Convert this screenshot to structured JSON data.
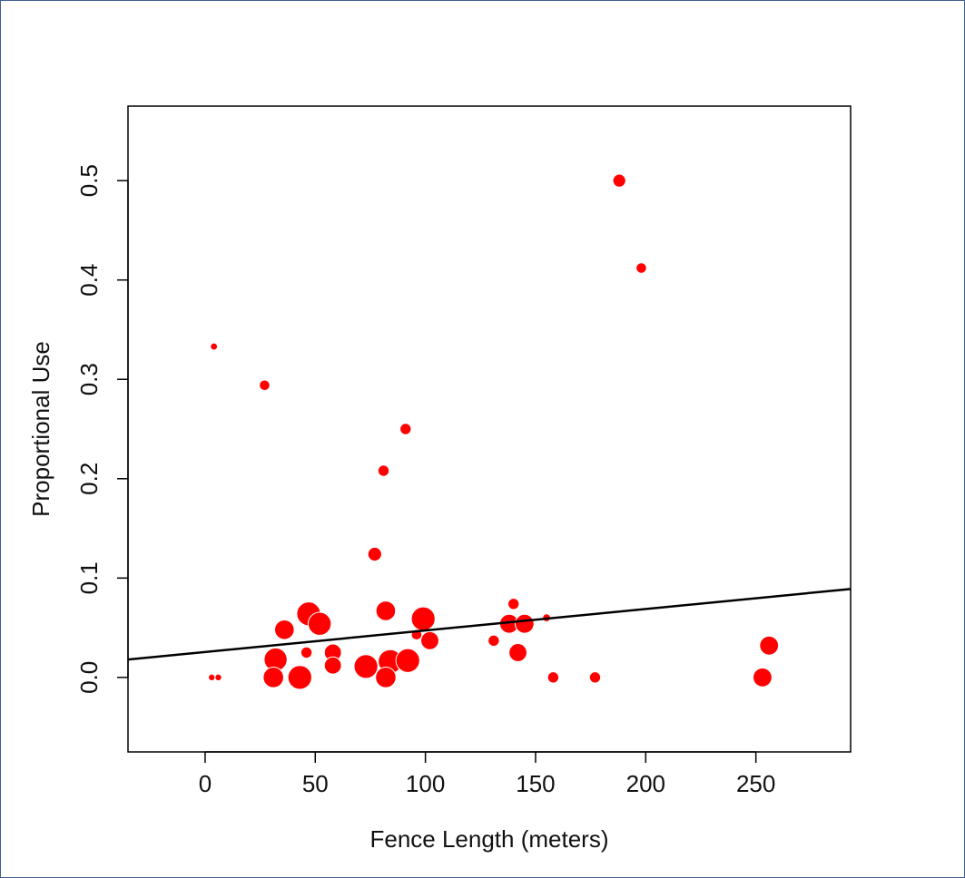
{
  "chart_data": {
    "type": "scatter",
    "title": "",
    "xlabel": "Fence Length (meters)",
    "ylabel": "Proportional Use",
    "xlim": [
      -35,
      293
    ],
    "ylim": [
      -0.075,
      0.575
    ],
    "xticks": [
      0,
      50,
      100,
      150,
      200,
      250
    ],
    "xtick_labels": [
      "0",
      "50",
      "100",
      "150",
      "200",
      "250"
    ],
    "yticks": [
      0.0,
      0.1,
      0.2,
      0.3,
      0.4,
      0.5
    ],
    "ytick_labels": [
      "0.0",
      "0.1",
      "0.2",
      "0.3",
      "0.4",
      "0.5"
    ],
    "grid": false,
    "legend": "none",
    "point_color": "#ff0000",
    "line_color": "#000000",
    "points": [
      {
        "x": 188,
        "y": 0.5,
        "size": 0.9
      },
      {
        "x": 198,
        "y": 0.412,
        "size": 0.6
      },
      {
        "x": 4,
        "y": 0.333,
        "size": 0.2
      },
      {
        "x": 27,
        "y": 0.294,
        "size": 0.6
      },
      {
        "x": 91,
        "y": 0.25,
        "size": 0.7
      },
      {
        "x": 81,
        "y": 0.208,
        "size": 0.7
      },
      {
        "x": 77,
        "y": 0.124,
        "size": 1.0
      },
      {
        "x": 140,
        "y": 0.074,
        "size": 0.7
      },
      {
        "x": 82,
        "y": 0.067,
        "size": 1.7
      },
      {
        "x": 47,
        "y": 0.064,
        "size": 2.2
      },
      {
        "x": 155,
        "y": 0.06,
        "size": 0.3
      },
      {
        "x": 99,
        "y": 0.059,
        "size": 2.2
      },
      {
        "x": 52,
        "y": 0.054,
        "size": 2.1
      },
      {
        "x": 138,
        "y": 0.054,
        "size": 1.6
      },
      {
        "x": 145,
        "y": 0.054,
        "size": 1.6
      },
      {
        "x": 36,
        "y": 0.048,
        "size": 1.7
      },
      {
        "x": 96,
        "y": 0.043,
        "size": 0.6
      },
      {
        "x": 102,
        "y": 0.037,
        "size": 1.5
      },
      {
        "x": 131,
        "y": 0.037,
        "size": 0.7
      },
      {
        "x": 256,
        "y": 0.032,
        "size": 1.6
      },
      {
        "x": 46,
        "y": 0.025,
        "size": 0.7
      },
      {
        "x": 58,
        "y": 0.025,
        "size": 1.4
      },
      {
        "x": 142,
        "y": 0.025,
        "size": 1.5
      },
      {
        "x": 32,
        "y": 0.018,
        "size": 2.1
      },
      {
        "x": 84,
        "y": 0.016,
        "size": 2.2
      },
      {
        "x": 92,
        "y": 0.017,
        "size": 2.2
      },
      {
        "x": 58,
        "y": 0.012,
        "size": 1.4
      },
      {
        "x": 73,
        "y": 0.011,
        "size": 2.2
      },
      {
        "x": 3,
        "y": 0.0,
        "size": 0.15
      },
      {
        "x": 6,
        "y": 0.0,
        "size": 0.15
      },
      {
        "x": 31,
        "y": 0.0,
        "size": 1.8
      },
      {
        "x": 43,
        "y": 0.0,
        "size": 2.2
      },
      {
        "x": 82,
        "y": 0.0,
        "size": 1.8
      },
      {
        "x": 158,
        "y": 0.0,
        "size": 0.7
      },
      {
        "x": 177,
        "y": 0.0,
        "size": 0.7
      },
      {
        "x": 253,
        "y": 0.0,
        "size": 1.6
      }
    ],
    "trend_line": {
      "x": [
        -35,
        293
      ],
      "y": [
        0.018,
        0.089
      ]
    }
  }
}
